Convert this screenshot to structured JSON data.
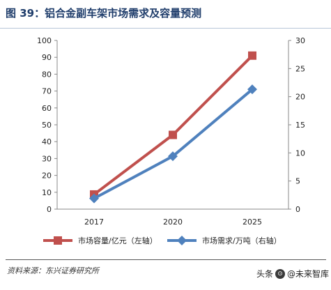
{
  "header": {
    "title": "图 39：铝合金副车架市场需求及容量预测"
  },
  "chart_data": {
    "type": "line",
    "title": "",
    "categories": [
      "2017",
      "2020",
      "2025"
    ],
    "left_axis": {
      "min": 0,
      "max": 100,
      "step": 10,
      "ticks": [
        "0",
        "10",
        "20",
        "30",
        "40",
        "50",
        "60",
        "70",
        "80",
        "90",
        "100"
      ]
    },
    "right_axis": {
      "min": 0,
      "max": 30,
      "step": 5,
      "ticks": [
        "0",
        "5",
        "10",
        "15",
        "20",
        "25",
        "30"
      ]
    },
    "grid": false,
    "legend_position": "bottom",
    "series": [
      {
        "name": "市场容量/亿元（左轴）",
        "axis": "left",
        "color": "#c0504d",
        "marker": "square",
        "values": [
          8.7,
          44,
          91
        ]
      },
      {
        "name": "市场需求/万吨（右轴）",
        "axis": "right",
        "color": "#4f81bd",
        "marker": "diamond",
        "values": [
          1.9,
          9.4,
          21.3
        ]
      }
    ]
  },
  "footer": {
    "source": "资料来源：东兴证券研究所",
    "watermark_prefix": "头条",
    "watermark_handle": "@未来智库"
  }
}
